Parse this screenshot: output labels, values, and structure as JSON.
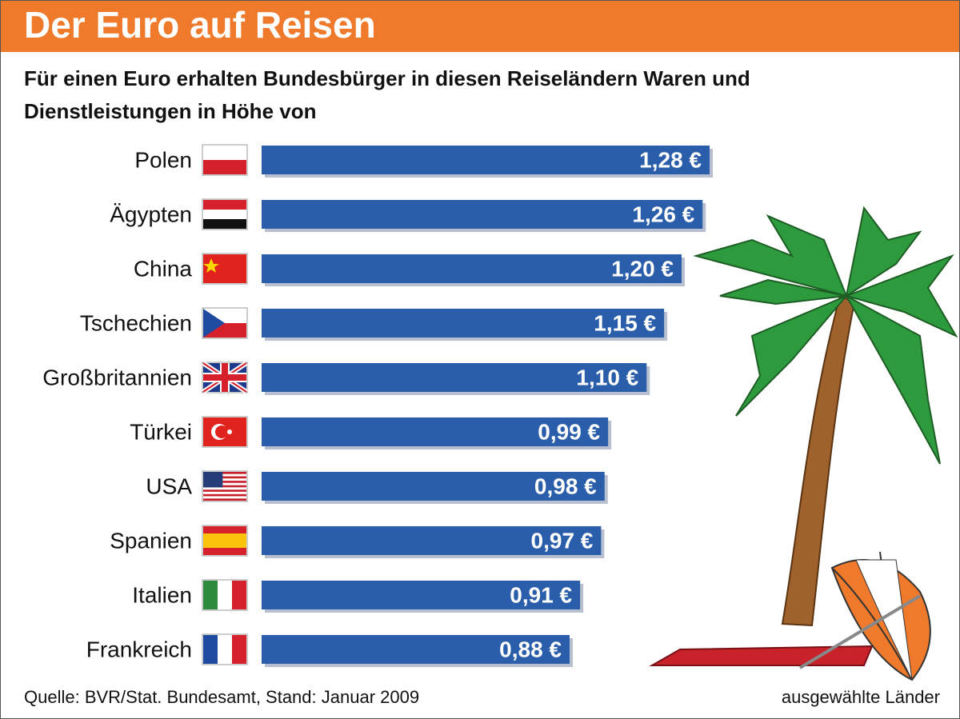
{
  "chart_data": {
    "type": "bar",
    "orientation": "horizontal",
    "title": "Der Euro auf Reisen",
    "subtitle": [
      "Für einen Euro erhalten Bundesbürger in diesen Reiseländern Waren und",
      "Dienstleistungen in Höhe von"
    ],
    "categories": [
      "Polen",
      "Ägypten",
      "China",
      "Tschechien",
      "Großbritannien",
      "Türkei",
      "USA",
      "Spanien",
      "Italien",
      "Frankreich"
    ],
    "values": [
      1.28,
      1.26,
      1.2,
      1.15,
      1.1,
      0.99,
      0.98,
      0.97,
      0.91,
      0.88
    ],
    "value_labels": [
      "1,28 €",
      "1,26 €",
      "1,20 €",
      "1,15 €",
      "1,10 €",
      "0,99 €",
      "0,98 €",
      "0,97 €",
      "0,91 €",
      "0,88 €"
    ],
    "color": "#2a5daa",
    "source": "Quelle: BVR/Stat. Bundesamt, Stand: Januar 2009",
    "note": "ausgewählte Länder"
  }
}
